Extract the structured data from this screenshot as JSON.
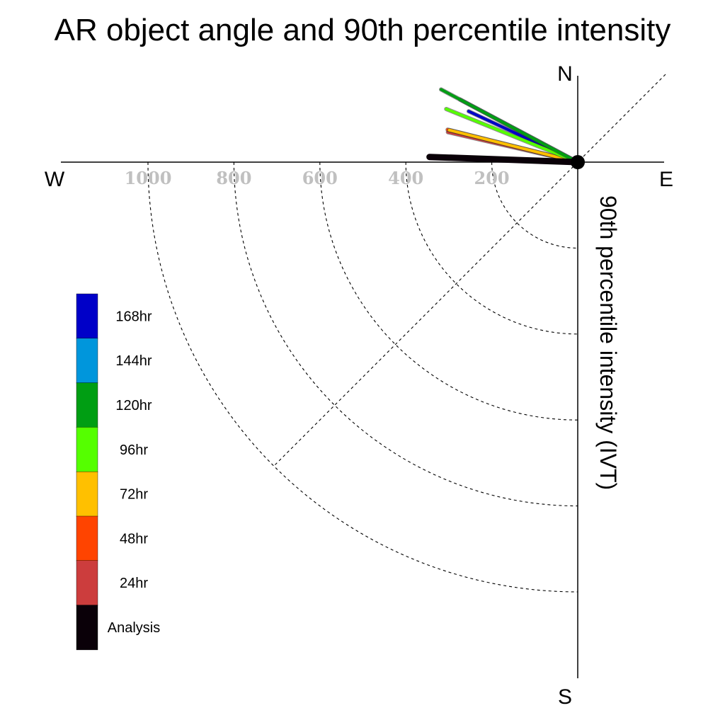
{
  "chart_data": {
    "type": "polar-vector",
    "title": "AR object angle and 90th percentile intensity",
    "ylabel": "90th percentile intensity (IVT)",
    "compass": {
      "north": "N",
      "south": "S",
      "east": "E",
      "west": "W"
    },
    "r_ticks": [
      "1000",
      "800",
      "600",
      "400",
      "200"
    ],
    "r_tick_values": [
      1000,
      800,
      600,
      400,
      200
    ],
    "r_max": 1000,
    "grid": true,
    "legend_position": "left",
    "series": [
      {
        "name": "Analysis",
        "color": "#0a0008",
        "angle_deg": 272,
        "intensity": 345
      },
      {
        "name": "24hr",
        "color": "#cc3d3d",
        "angle_deg": 283,
        "intensity": 310
      },
      {
        "name": "48hr",
        "color": "#ff4400",
        "angle_deg": 284,
        "intensity": 312
      },
      {
        "name": "72hr",
        "color": "#ffc000",
        "angle_deg": 284,
        "intensity": 308
      },
      {
        "name": "96hr",
        "color": "#55ff00",
        "angle_deg": 292,
        "intensity": 330
      },
      {
        "name": "120hr",
        "color": "#009e13",
        "angle_deg": 298,
        "intensity": 360
      },
      {
        "name": "144hr",
        "color": "#0096dc",
        "angle_deg": 298,
        "intensity": 310
      },
      {
        "name": "168hr",
        "color": "#0000c8",
        "angle_deg": 295,
        "intensity": 280
      }
    ]
  }
}
